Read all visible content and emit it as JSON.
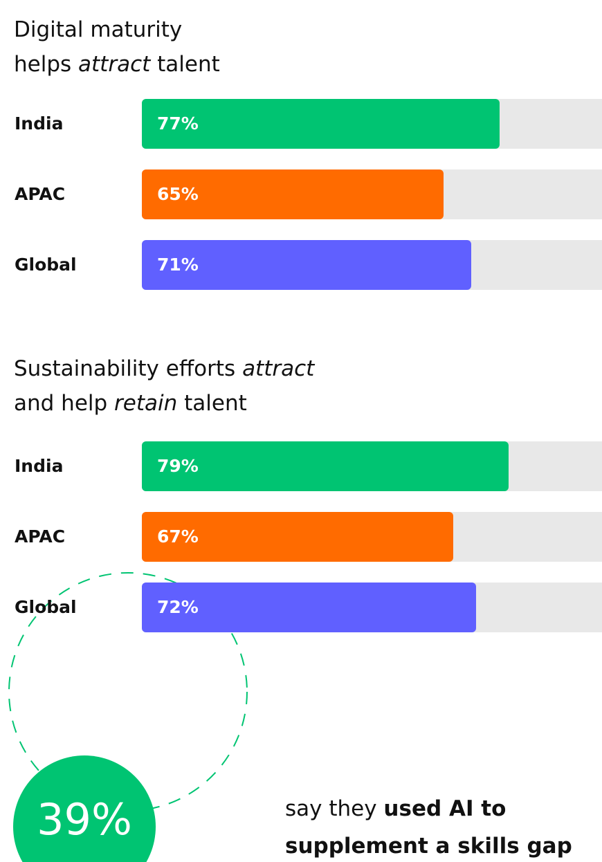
{
  "chart_data": [
    {
      "type": "bar",
      "orientation": "horizontal",
      "title_lines": [
        [
          {
            "text": "Digital maturity"
          }
        ],
        [
          {
            "text": "helps "
          },
          {
            "text": "attract",
            "italic": true
          },
          {
            "text": " talent"
          }
        ]
      ],
      "categories": [
        "India",
        "APAC",
        "Global"
      ],
      "values": [
        77,
        65,
        71
      ],
      "value_labels": [
        "77%",
        "65%",
        "71%"
      ],
      "colors": [
        "#00c472",
        "#ff6b00",
        "#6060ff"
      ],
      "track_color": "#e8e8e8",
      "xlim": [
        0,
        100
      ]
    },
    {
      "type": "bar",
      "orientation": "horizontal",
      "title_lines": [
        [
          {
            "text": "Sustainability efforts "
          },
          {
            "text": "attract",
            "italic": true
          }
        ],
        [
          {
            "text": "and help "
          },
          {
            "text": "retain",
            "italic": true
          },
          {
            "text": " talent"
          }
        ]
      ],
      "categories": [
        "India",
        "APAC",
        "Global"
      ],
      "values": [
        79,
        67,
        72
      ],
      "value_labels": [
        "79%",
        "67%",
        "72%"
      ],
      "colors": [
        "#00c472",
        "#ff6b00",
        "#6060ff"
      ],
      "track_color": "#e8e8e8",
      "xlim": [
        0,
        100
      ]
    }
  ],
  "highlight": {
    "label": "39%",
    "color": "#00c472",
    "text_lines": [
      [
        {
          "text": "say they "
        },
        {
          "text": "used AI to",
          "bold": true
        }
      ],
      [
        {
          "text": "supplement a skills gap",
          "bold": true
        }
      ]
    ]
  }
}
